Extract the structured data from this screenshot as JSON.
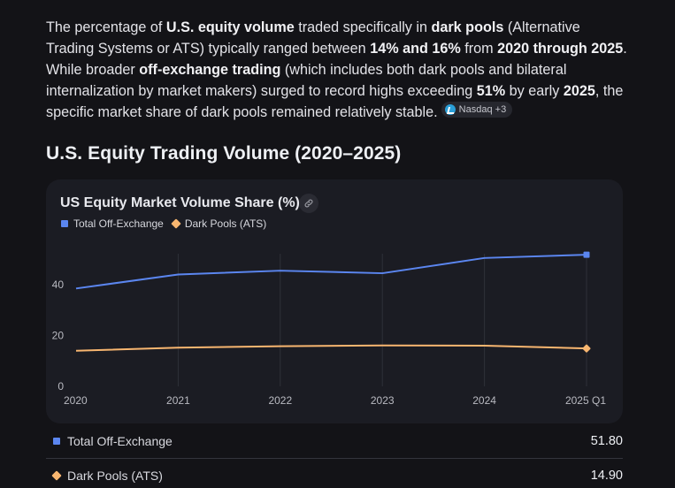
{
  "paragraph": {
    "segments": [
      {
        "text": "The percentage of ",
        "bold": false
      },
      {
        "text": "U.S. equity volume",
        "bold": true
      },
      {
        "text": " traded specifically in ",
        "bold": false
      },
      {
        "text": "dark pools",
        "bold": true
      },
      {
        "text": " (Alternative Trading Systems or ATS) typically ranged between ",
        "bold": false
      },
      {
        "text": "14% and 16%",
        "bold": true
      },
      {
        "text": " from ",
        "bold": false
      },
      {
        "text": "2020 through 2025",
        "bold": true
      },
      {
        "text": ". While broader ",
        "bold": false
      },
      {
        "text": "off-exchange trading",
        "bold": true
      },
      {
        "text": " (which includes both dark pools and bilateral internalization by market makers) surged to record highs exceeding ",
        "bold": false
      },
      {
        "text": "51%",
        "bold": true
      },
      {
        "text": " by early ",
        "bold": false
      },
      {
        "text": "2025",
        "bold": true
      },
      {
        "text": ", the specific market share of dark pools remained relatively stable.",
        "bold": false
      }
    ],
    "source_chip": {
      "label": "Nasdaq +3",
      "icon": "nasdaq-logo-icon"
    }
  },
  "section_heading": "U.S. Equity Trading Volume (2020–2025)",
  "card": {
    "title": "US Equity Market Volume Share (%)",
    "link_icon": "link-icon"
  },
  "colors": {
    "series_blue": "#5b86f0",
    "series_orange": "#f8b670"
  },
  "chart_data": {
    "type": "line",
    "title": "US Equity Market Volume Share (%)",
    "xlabel": "",
    "ylabel": "",
    "categories": [
      "2020",
      "2021",
      "2022",
      "2023",
      "2024",
      "2025 Q1"
    ],
    "ylim": [
      0,
      55
    ],
    "yticks": [
      0,
      20,
      40
    ],
    "grid": "vertical",
    "legend": "top-left",
    "series": [
      {
        "name": "Total Off-Exchange",
        "marker": "square",
        "color": "#5b86f0",
        "values": [
          38.5,
          44.0,
          45.5,
          44.5,
          50.5,
          51.8
        ]
      },
      {
        "name": "Dark Pools (ATS)",
        "marker": "diamond",
        "color": "#f8b670",
        "values": [
          14.0,
          15.2,
          15.8,
          16.1,
          16.0,
          14.9
        ]
      }
    ]
  },
  "summary": [
    {
      "label": "Total Off-Exchange",
      "value": "51.80",
      "marker": "square"
    },
    {
      "label": "Dark Pools (ATS)",
      "value": "14.90",
      "marker": "diamond"
    }
  ]
}
